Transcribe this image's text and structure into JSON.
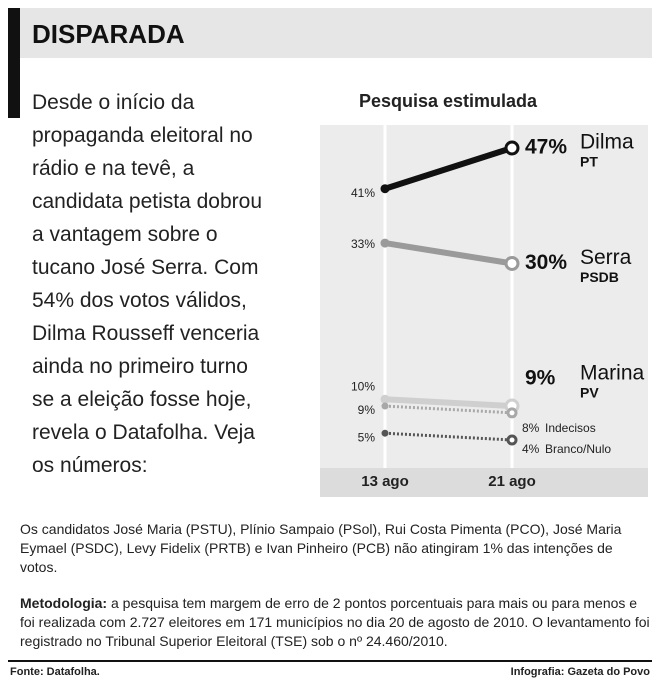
{
  "header": {
    "title": "DISPARADA"
  },
  "intro": {
    "lines": [
      "Desde o início da",
      "propaganda eleitoral no",
      "rádio e na tevê, a",
      "candidata petista dobrou",
      "a vantagem sobre o",
      "tucano José Serra. Com",
      "54% dos votos válidos,",
      "Dilma Rousseff venceria",
      "ainda no primeiro turno",
      "se a eleição fosse hoje,",
      "revela o Datafolha. Veja",
      "os números:"
    ]
  },
  "chart_data": {
    "type": "line",
    "title": "Pesquisa estimulada",
    "categories": [
      "13 ago",
      "21 ago"
    ],
    "series": [
      {
        "name": "Dilma",
        "party": "PT",
        "color": "#111111",
        "style": "solid",
        "values": [
          41,
          47
        ],
        "value_labels": [
          "41%",
          "47%"
        ]
      },
      {
        "name": "Serra",
        "party": "PSDB",
        "color": "#9a9a9a",
        "style": "solid",
        "values": [
          33,
          30
        ],
        "value_labels": [
          "33%",
          "30%"
        ]
      },
      {
        "name": "Marina",
        "party": "PV",
        "color": "#cfcfcf",
        "style": "solid",
        "values": [
          10,
          9
        ],
        "value_labels": [
          "10%",
          "9%"
        ]
      },
      {
        "name": "Indecisos",
        "color": "#a8a8a8",
        "style": "dotted",
        "values": [
          9,
          8
        ],
        "value_labels": [
          "9%",
          "8%"
        ]
      },
      {
        "name": "Branco/Nulo",
        "color": "#555555",
        "style": "dotted",
        "values": [
          5,
          4
        ],
        "value_labels": [
          "5%",
          "4%"
        ]
      }
    ]
  },
  "notes": {
    "text": "Os candidatos José Maria (PSTU), Plínio Sampaio (PSol), Rui Costa Pimenta (PCO), José Maria Eymael (PSDC), Levy Fidelix (PRTB) e Ivan Pinheiro (PCB) não atingiram 1% das intenções de votos."
  },
  "methodology": {
    "label": "Metodologia:",
    "text": "a pesquisa tem margem de erro de 2 pontos porcentuais para mais ou para menos e foi realizada com 2.727 eleitores em 171 municípios no dia 20 de agosto de 2010. O levantamento foi registrado no Tribunal Superior Eleitoral (TSE) sob o nº 24.460/2010."
  },
  "footer": {
    "source": "Fonte: Datafolha.",
    "credit": "Infografia: Gazeta do Povo"
  }
}
